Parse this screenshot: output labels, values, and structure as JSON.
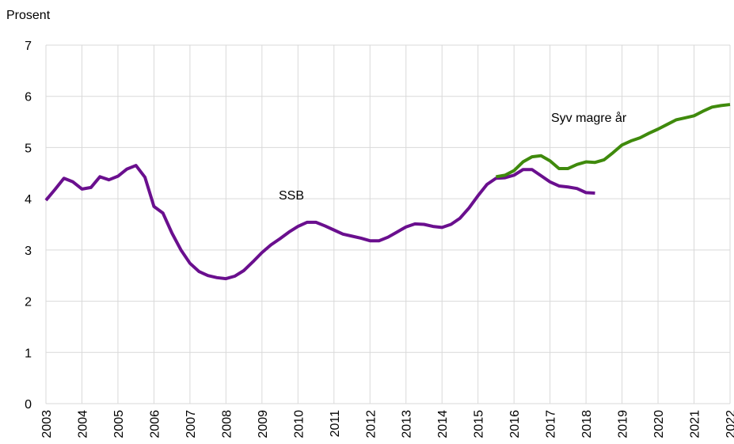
{
  "chart_data": {
    "type": "line",
    "y_label": "Prosent",
    "annotations": [
      "SSB",
      "Syv magre år"
    ],
    "x": [
      2003,
      2003.25,
      2003.5,
      2003.75,
      2004,
      2004.25,
      2004.5,
      2004.75,
      2005,
      2005.25,
      2005.5,
      2005.75,
      2006,
      2006.25,
      2006.5,
      2006.75,
      2007,
      2007.25,
      2007.5,
      2007.75,
      2008,
      2008.25,
      2008.5,
      2008.75,
      2009,
      2009.25,
      2009.5,
      2009.75,
      2010,
      2010.25,
      2010.5,
      2010.75,
      2011,
      2011.25,
      2011.5,
      2011.75,
      2012,
      2012.25,
      2012.5,
      2012.75,
      2013,
      2013.25,
      2013.5,
      2013.75,
      2014,
      2014.25,
      2014.5,
      2014.75,
      2015,
      2015.25,
      2015.5,
      2015.75,
      2016,
      2016.25,
      2016.5,
      2016.75,
      2017,
      2017.25,
      2017.5,
      2017.75,
      2018,
      2018.25,
      2018.5,
      2018.75,
      2019,
      2019.25,
      2019.5,
      2019.75,
      2020,
      2020.25,
      2020.5,
      2020.75,
      2021,
      2021.25,
      2021.5,
      2021.75,
      2022
    ],
    "series": [
      {
        "name": "SSB",
        "color": "#6a0f8e",
        "values": [
          3.97,
          4.18,
          4.4,
          4.33,
          4.19,
          4.22,
          4.43,
          4.37,
          4.44,
          4.58,
          4.65,
          4.42,
          3.85,
          3.72,
          3.33,
          3.0,
          2.74,
          2.58,
          2.5,
          2.46,
          2.44,
          2.49,
          2.6,
          2.77,
          2.95,
          3.1,
          3.22,
          3.35,
          3.46,
          3.54,
          3.54,
          3.47,
          3.39,
          3.31,
          3.27,
          3.23,
          3.18,
          3.18,
          3.25,
          3.35,
          3.45,
          3.51,
          3.5,
          3.46,
          3.44,
          3.5,
          3.62,
          3.82,
          4.06,
          4.28,
          4.4,
          4.41,
          4.46,
          4.57,
          4.57,
          4.45,
          4.33,
          4.25,
          4.23,
          4.2,
          4.12,
          4.11,
          null,
          null,
          null,
          null,
          null,
          null,
          null,
          null,
          null,
          null,
          null,
          null,
          null,
          null,
          null
        ]
      },
      {
        "name": "Syv magre år",
        "color": "#3f8a0c",
        "values": [
          null,
          null,
          null,
          null,
          null,
          null,
          null,
          null,
          null,
          null,
          null,
          null,
          null,
          null,
          null,
          null,
          null,
          null,
          null,
          null,
          null,
          null,
          null,
          null,
          null,
          null,
          null,
          null,
          null,
          null,
          null,
          null,
          null,
          null,
          null,
          null,
          null,
          null,
          null,
          null,
          null,
          null,
          null,
          null,
          null,
          null,
          null,
          null,
          null,
          null,
          4.43,
          4.46,
          4.55,
          4.72,
          4.82,
          4.84,
          4.74,
          4.59,
          4.59,
          4.67,
          4.72,
          4.71,
          4.76,
          4.9,
          5.05,
          5.13,
          5.19,
          5.28,
          5.36,
          5.45,
          5.54,
          5.58,
          5.62,
          5.71,
          5.79,
          5.82,
          5.84
        ]
      }
    ],
    "xlim": [
      2003,
      2022
    ],
    "xticks": [
      2003,
      2004,
      2005,
      2006,
      2007,
      2008,
      2009,
      2010,
      2011,
      2012,
      2013,
      2014,
      2015,
      2016,
      2017,
      2018,
      2019,
      2020,
      2021,
      2022
    ],
    "ylim": [
      0,
      7
    ],
    "yticks": [
      0,
      1,
      2,
      3,
      4,
      5,
      6,
      7
    ],
    "grid": true
  }
}
